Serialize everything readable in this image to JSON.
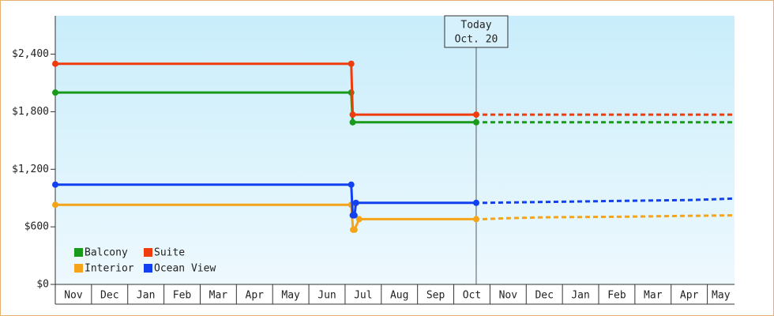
{
  "chart_data": {
    "type": "line",
    "categories": [
      "Nov",
      "Dec",
      "Jan",
      "Feb",
      "Mar",
      "Apr",
      "May",
      "Jun",
      "Jul",
      "Aug",
      "Sep",
      "Oct",
      "Nov",
      "Dec",
      "Jan",
      "Feb",
      "Mar",
      "Apr",
      "May"
    ],
    "xlim": [
      0,
      18.75
    ],
    "ylim": [
      0,
      2800
    ],
    "yticks": [
      {
        "value": 0,
        "label": "$0"
      },
      {
        "value": 600,
        "label": "$600"
      },
      {
        "value": 1200,
        "label": "$1,200"
      },
      {
        "value": 1800,
        "label": "$1,800"
      },
      {
        "value": 2400,
        "label": "$2,400"
      }
    ],
    "annotation": {
      "x": 11.62,
      "lines": [
        "Today",
        "Oct. 20"
      ]
    },
    "series": [
      {
        "name": "Balcony",
        "color": "#1a9a1a",
        "x": [
          0,
          8.17,
          8.21,
          11.62
        ],
        "values": [
          2000,
          2000,
          1690,
          1690
        ],
        "forecast": {
          "x": [
            11.62,
            18.75
          ],
          "values": [
            1690,
            1690
          ]
        }
      },
      {
        "name": "Suite",
        "color": "#f03c0c",
        "x": [
          0,
          8.17,
          8.21,
          11.62
        ],
        "values": [
          2300,
          2300,
          1770,
          1770
        ],
        "forecast": {
          "x": [
            11.62,
            18.75
          ],
          "values": [
            1770,
            1770
          ]
        }
      },
      {
        "name": "Interior",
        "color": "#f5a41a",
        "x": [
          0,
          8.17,
          8.22,
          8.26,
          8.39,
          11.62
        ],
        "values": [
          830,
          830,
          570,
          570,
          680,
          680
        ],
        "forecast": {
          "x": [
            11.62,
            12.5,
            13.6,
            15.5,
            17.6,
            18.75
          ],
          "values": [
            680,
            690,
            700,
            705,
            715,
            720
          ]
        }
      },
      {
        "name": "Ocean View",
        "color": "#1040f0",
        "x": [
          0,
          8.17,
          8.21,
          8.26,
          8.3,
          11.62
        ],
        "values": [
          1040,
          1040,
          720,
          720,
          850,
          850
        ],
        "forecast": {
          "x": [
            11.62,
            13.6,
            15.5,
            17.6,
            18.75
          ],
          "values": [
            850,
            860,
            870,
            880,
            895
          ]
        }
      }
    ]
  }
}
